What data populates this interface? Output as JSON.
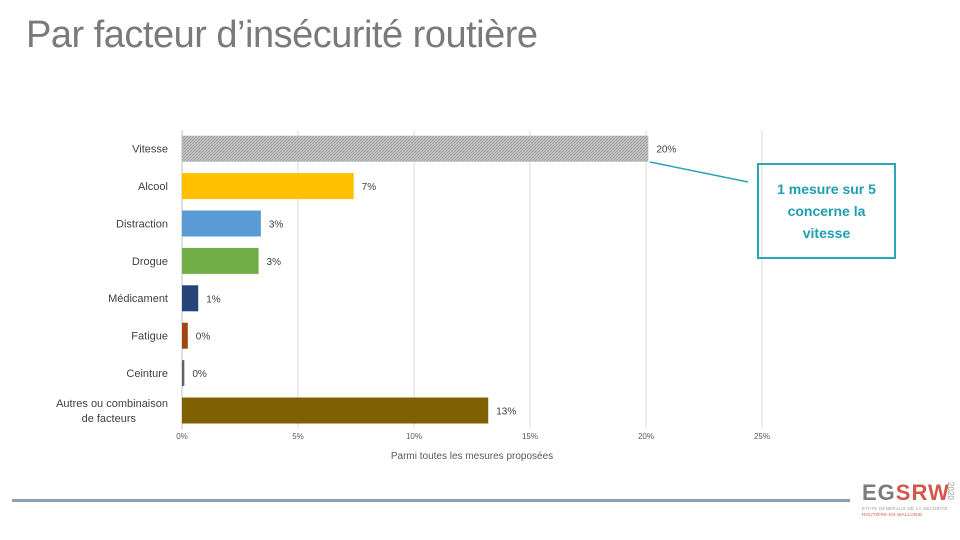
{
  "title": "Par facteur d’insécurité routière",
  "callout": {
    "text": "1 mesure sur 5\nconcerne la\nvitesse",
    "color": "#2ba6b6"
  },
  "logo": {
    "main_a": "EG",
    "main_b": "SRW",
    "year": "2020",
    "line1": "ETATS GÉNÉRAUX DE LA SÉCURITÉ",
    "line2": "ROUTIÈRE EN WALLONIE"
  },
  "chart_data": {
    "type": "bar",
    "orientation": "horizontal",
    "categories": [
      "Vitesse",
      "Alcool",
      "Distraction",
      "Drogue",
      "Médicament",
      "Fatigue",
      "Ceinture",
      "Autres ou combinaison de facteurs"
    ],
    "values": [
      20.1,
      7.4,
      3.4,
      3.3,
      0.7,
      0.25,
      0.1,
      13.2
    ],
    "data_labels": [
      "20%",
      "7%",
      "3%",
      "3%",
      "1%",
      "0%",
      "0%",
      "13%"
    ],
    "colors": [
      "#b4b4b4",
      "#ffc000",
      "#5b9bd5",
      "#70ad47",
      "#264478",
      "#9e480e",
      "#636363",
      "#7f6000"
    ],
    "xlabel": "Parmi toutes les mesures proposées",
    "xlim": [
      0,
      25
    ],
    "xticks": [
      0,
      5,
      10,
      15,
      20,
      25
    ],
    "xtick_labels": [
      "0%",
      "5%",
      "10%",
      "15%",
      "20%",
      "25%"
    ],
    "grid": true
  }
}
